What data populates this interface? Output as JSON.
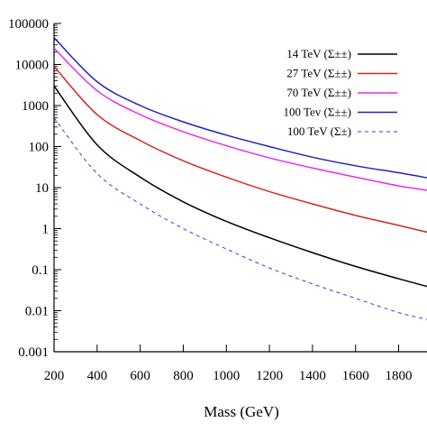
{
  "chart_data": {
    "type": "line",
    "title": "",
    "xlabel": "Mass (GeV)",
    "ylabel": "",
    "xlim": [
      200,
      1940
    ],
    "ylim": [
      0.001,
      100000
    ],
    "yscale": "log",
    "grid": false,
    "legend_position": "top-right",
    "x_ticks": [
      200,
      400,
      600,
      800,
      1000,
      1200,
      1400,
      1600,
      1800
    ],
    "x_tick_labels": [
      "200",
      "400",
      "600",
      "800",
      "1000",
      "1200",
      "1400",
      "1600",
      "1800"
    ],
    "y_ticks": [
      0.001,
      0.01,
      0.1,
      1,
      10,
      100,
      1000,
      10000,
      100000
    ],
    "y_tick_labels": [
      "0.001",
      "0.01",
      "0.1",
      "1",
      "10",
      "100",
      "1000",
      "10000",
      "100000"
    ],
    "x": [
      200,
      400,
      600,
      800,
      1000,
      1200,
      1400,
      1600,
      1800,
      1940
    ],
    "series": [
      {
        "name": "14 TeV (Σ±±)",
        "color": "#000000",
        "dash": "solid",
        "values": [
          3000,
          110,
          18,
          4.5,
          1.5,
          0.6,
          0.26,
          0.12,
          0.06,
          0.038
        ]
      },
      {
        "name": "27 TeV (Σ±±)",
        "color": "#d7261e",
        "dash": "solid",
        "values": [
          9000,
          600,
          140,
          45,
          18,
          8,
          4,
          2.1,
          1.2,
          0.8
        ]
      },
      {
        "name": "70 TeV (Σ±±)",
        "color": "#e62ee6",
        "dash": "solid",
        "values": [
          25000,
          2300,
          600,
          230,
          105,
          53,
          30,
          18,
          11,
          8.5
        ]
      },
      {
        "name": "100 Tev (Σ±±)",
        "color": "#2323b4",
        "dash": "solid",
        "values": [
          45000,
          3800,
          1000,
          400,
          190,
          100,
          55,
          34,
          23,
          17
        ]
      },
      {
        "name": "100 TeV (Σ±)",
        "color": "#3a3ad6",
        "dash": "dashed",
        "values": [
          500,
          22,
          4,
          1,
          0.32,
          0.11,
          0.045,
          0.02,
          0.009,
          0.006
        ]
      }
    ]
  }
}
